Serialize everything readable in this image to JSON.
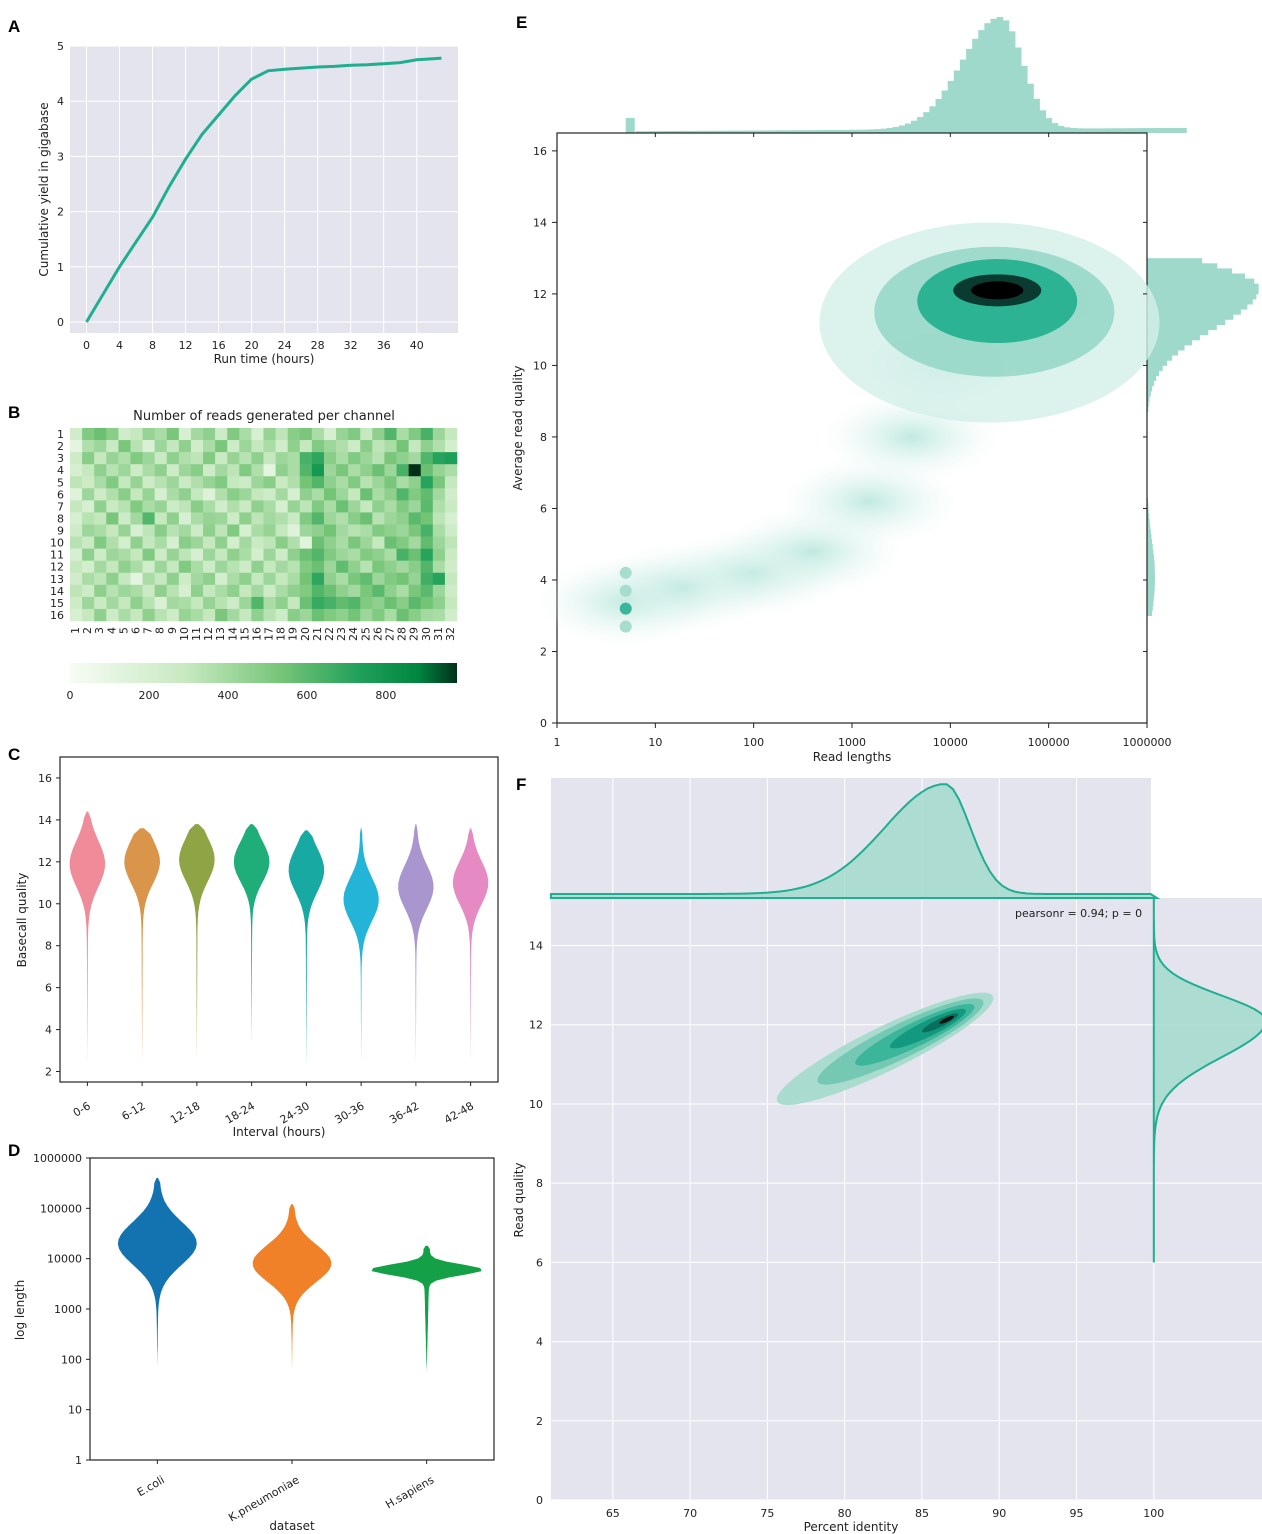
{
  "panels": {
    "A": {
      "label": "A"
    },
    "B": {
      "label": "B"
    },
    "C": {
      "label": "C"
    },
    "D": {
      "label": "D"
    },
    "E": {
      "label": "E"
    },
    "F": {
      "label": "F"
    }
  },
  "colors": {
    "teal": "#1fae90",
    "plot_bg": "#e4e4ef",
    "grid": "#ffffff",
    "green_dark": "#00441b",
    "green_light": "#f7fcf5"
  },
  "chart_data": [
    {
      "panel": "A",
      "type": "line",
      "xlabel": "Run time (hours)",
      "ylabel": "Cumulative yield in gigabase",
      "xticks": [
        0,
        4,
        8,
        12,
        16,
        20,
        24,
        28,
        32,
        36,
        40
      ],
      "yticks": [
        0,
        1,
        2,
        3,
        4,
        5
      ],
      "xlim": [
        -2,
        45
      ],
      "ylim": [
        -0.2,
        5
      ],
      "grid": true,
      "series": [
        {
          "x": [
            0,
            2,
            4,
            6,
            8,
            10,
            12,
            14,
            16,
            18,
            20,
            22,
            24,
            26,
            28,
            30,
            32,
            34,
            36,
            38,
            40,
            42,
            43
          ],
          "y": [
            0,
            0.5,
            1.0,
            1.45,
            1.9,
            2.45,
            2.95,
            3.4,
            3.75,
            4.1,
            4.4,
            4.55,
            4.58,
            4.6,
            4.62,
            4.63,
            4.65,
            4.66,
            4.68,
            4.7,
            4.75,
            4.77,
            4.78
          ]
        }
      ]
    },
    {
      "panel": "B",
      "type": "heatmap",
      "title": "Number of reads generated per channel",
      "rows": [
        "1",
        "2",
        "3",
        "4",
        "5",
        "6",
        "7",
        "8",
        "9",
        "10",
        "11",
        "12",
        "13",
        "14",
        "15",
        "16"
      ],
      "columns": [
        "1",
        "2",
        "3",
        "4",
        "5",
        "6",
        "7",
        "8",
        "9",
        "10",
        "11",
        "12",
        "13",
        "14",
        "15",
        "16",
        "17",
        "18",
        "19",
        "20",
        "21",
        "22",
        "23",
        "24",
        "25",
        "26",
        "27",
        "28",
        "29",
        "30",
        "31",
        "32"
      ],
      "colorbar_ticks": [
        0,
        200,
        400,
        600,
        800
      ],
      "vmax": 980,
      "values": [
        [
          240,
          500,
          560,
          480,
          240,
          300,
          440,
          380,
          520,
          200,
          400,
          460,
          260,
          500,
          380,
          200,
          440,
          320,
          480,
          520,
          380,
          200,
          440,
          500,
          300,
          460,
          620,
          380,
          500,
          640,
          420,
          300
        ],
        [
          120,
          360,
          420,
          280,
          520,
          340,
          180,
          420,
          300,
          460,
          240,
          380,
          520,
          260,
          420,
          300,
          380,
          240,
          460,
          300,
          500,
          420,
          360,
          260,
          480,
          320,
          380,
          540,
          300,
          460,
          360,
          220
        ],
        [
          260,
          480,
          300,
          440,
          360,
          500,
          420,
          280,
          460,
          360,
          320,
          500,
          280,
          440,
          340,
          460,
          300,
          420,
          380,
          640,
          700,
          480,
          380,
          500,
          420,
          340,
          520,
          460,
          400,
          620,
          720,
          740
        ],
        [
          200,
          300,
          460,
          340,
          420,
          260,
          380,
          460,
          260,
          420,
          480,
          260,
          400,
          320,
          500,
          360,
          120,
          460,
          380,
          620,
          780,
          420,
          520,
          380,
          460,
          560,
          420,
          640,
          980,
          560,
          440,
          380
        ],
        [
          320,
          260,
          380,
          500,
          300,
          440,
          260,
          340,
          420,
          280,
          360,
          440,
          500,
          300,
          260,
          420,
          480,
          280,
          360,
          540,
          620,
          460,
          380,
          500,
          340,
          420,
          520,
          380,
          460,
          720,
          520,
          300
        ],
        [
          160,
          420,
          260,
          360,
          480,
          300,
          440,
          200,
          380,
          460,
          300,
          160,
          360,
          480,
          420,
          300,
          260,
          400,
          200,
          460,
          380,
          540,
          420,
          300,
          560,
          380,
          460,
          620,
          500,
          580,
          400,
          240
        ],
        [
          300,
          200,
          460,
          280,
          340,
          500,
          380,
          440,
          260,
          320,
          480,
          380,
          240,
          360,
          280,
          460,
          380,
          200,
          440,
          320,
          500,
          380,
          560,
          420,
          300,
          460,
          380,
          500,
          420,
          600,
          360,
          280
        ],
        [
          200,
          340,
          300,
          520,
          260,
          400,
          620,
          300,
          460,
          200,
          380,
          440,
          420,
          260,
          460,
          320,
          400,
          360,
          280,
          500,
          620,
          420,
          360,
          480,
          560,
          340,
          420,
          460,
          600,
          540,
          320,
          200
        ],
        [
          260,
          420,
          380,
          300,
          440,
          200,
          320,
          480,
          340,
          400,
          260,
          460,
          320,
          500,
          200,
          380,
          440,
          300,
          160,
          420,
          460,
          540,
          400,
          340,
          380,
          500,
          460,
          420,
          520,
          640,
          380,
          260
        ],
        [
          340,
          280,
          500,
          360,
          220,
          460,
          300,
          380,
          200,
          480,
          420,
          300,
          460,
          220,
          400,
          280,
          320,
          480,
          360,
          140,
          560,
          460,
          380,
          520,
          420,
          300,
          560,
          500,
          400,
          580,
          420,
          320
        ],
        [
          200,
          460,
          260,
          420,
          380,
          300,
          500,
          260,
          440,
          320,
          200,
          420,
          300,
          460,
          380,
          220,
          420,
          260,
          460,
          560,
          620,
          500,
          420,
          380,
          500,
          460,
          380,
          640,
          560,
          720,
          460,
          280
        ],
        [
          300,
          220,
          400,
          300,
          460,
          380,
          240,
          420,
          300,
          500,
          380,
          260,
          420,
          340,
          260,
          460,
          300,
          400,
          340,
          500,
          560,
          420,
          580,
          460,
          340,
          520,
          460,
          400,
          480,
          620,
          380,
          240
        ],
        [
          240,
          380,
          320,
          460,
          300,
          120,
          380,
          300,
          460,
          260,
          400,
          460,
          220,
          380,
          460,
          300,
          420,
          300,
          380,
          540,
          700,
          460,
          380,
          520,
          580,
          420,
          500,
          540,
          440,
          660,
          720,
          300
        ],
        [
          320,
          260,
          460,
          340,
          420,
          380,
          280,
          460,
          340,
          200,
          460,
          300,
          380,
          460,
          300,
          400,
          260,
          380,
          460,
          500,
          620,
          560,
          460,
          400,
          520,
          600,
          460,
          380,
          520,
          600,
          420,
          260
        ],
        [
          260,
          420,
          280,
          400,
          300,
          460,
          340,
          180,
          400,
          380,
          300,
          440,
          340,
          260,
          420,
          620,
          380,
          460,
          300,
          560,
          680,
          640,
          580,
          620,
          500,
          460,
          560,
          480,
          600,
          540,
          460,
          300
        ],
        [
          200,
          300,
          460,
          260,
          380,
          300,
          460,
          340,
          260,
          440,
          380,
          300,
          520,
          400,
          300,
          460,
          340,
          260,
          480,
          420,
          560,
          500,
          460,
          540,
          420,
          500,
          380,
          560,
          480,
          400,
          380,
          240
        ]
      ]
    },
    {
      "panel": "C",
      "type": "violin",
      "xlabel": "Interval (hours)",
      "ylabel": "Basecall quality",
      "categories": [
        "0-6",
        "6-12",
        "12-18",
        "18-24",
        "24-30",
        "30-36",
        "36-42",
        "42-48"
      ],
      "yticks": [
        2,
        4,
        6,
        8,
        10,
        12,
        14,
        16
      ],
      "ylim": [
        1.5,
        17
      ],
      "colors": [
        "#f08b9a",
        "#d9954a",
        "#8fa444",
        "#1fae7a",
        "#19a9a3",
        "#24b4d8",
        "#a996cf",
        "#e58ac3"
      ],
      "ranges": [
        [
          2.5,
          14.4
        ],
        [
          2.5,
          13.6
        ],
        [
          2.7,
          13.8
        ],
        [
          3.4,
          13.8
        ],
        [
          2.3,
          13.5
        ],
        [
          2.5,
          13.6
        ],
        [
          2.5,
          13.8
        ],
        [
          2.5,
          13.6
        ]
      ],
      "modes": [
        11.9,
        12.0,
        12.1,
        12.0,
        11.6,
        10.2,
        10.8,
        11.0
      ]
    },
    {
      "panel": "D",
      "type": "violin",
      "xlabel": "dataset",
      "ylabel": "log length",
      "categories": [
        "E.coli",
        "K.pneumoniae",
        "H.sapiens"
      ],
      "yticks": [
        "1",
        "10",
        "100",
        "1000",
        "10000",
        "100000",
        "1000000"
      ],
      "scale": "log",
      "colors": [
        "#1373b1",
        "#f08128",
        "#13a046"
      ],
      "ranges": [
        [
          70,
          400000
        ],
        [
          65,
          120000
        ],
        [
          55,
          18000
        ]
      ],
      "modes": [
        20000,
        8000,
        6000
      ]
    },
    {
      "panel": "E",
      "type": "hexbin",
      "xlabel": "Read lengths",
      "ylabel": "Average read quality",
      "xticks": [
        "1",
        "10",
        "100",
        "1000",
        "10000",
        "100000",
        "1000000"
      ],
      "yticks": [
        0,
        2,
        4,
        6,
        8,
        10,
        12,
        14,
        16
      ],
      "xlim": [
        1,
        1000000
      ],
      "ylim": [
        0,
        16.5
      ],
      "scale_x": "log",
      "density_peak": {
        "x": 30000,
        "y": 12.1
      },
      "marginal_x_peak": 30000,
      "marginal_y_peak": 12.1
    },
    {
      "panel": "F",
      "type": "kde",
      "xlabel": "Percent identity",
      "ylabel": "Read quality",
      "annotation": "pearsonr = 0.94; p = 0",
      "xticks": [
        65,
        70,
        75,
        80,
        85,
        90,
        95,
        100
      ],
      "yticks": [
        0,
        2,
        4,
        6,
        8,
        10,
        12,
        14
      ],
      "xlim": [
        61,
        107
      ],
      "ylim": [
        0,
        15.2
      ],
      "grid": true,
      "density_peak": {
        "x": 86.5,
        "y": 12.1
      },
      "marginal_x_peak": 86.5,
      "marginal_y_peak": 12.1
    }
  ]
}
